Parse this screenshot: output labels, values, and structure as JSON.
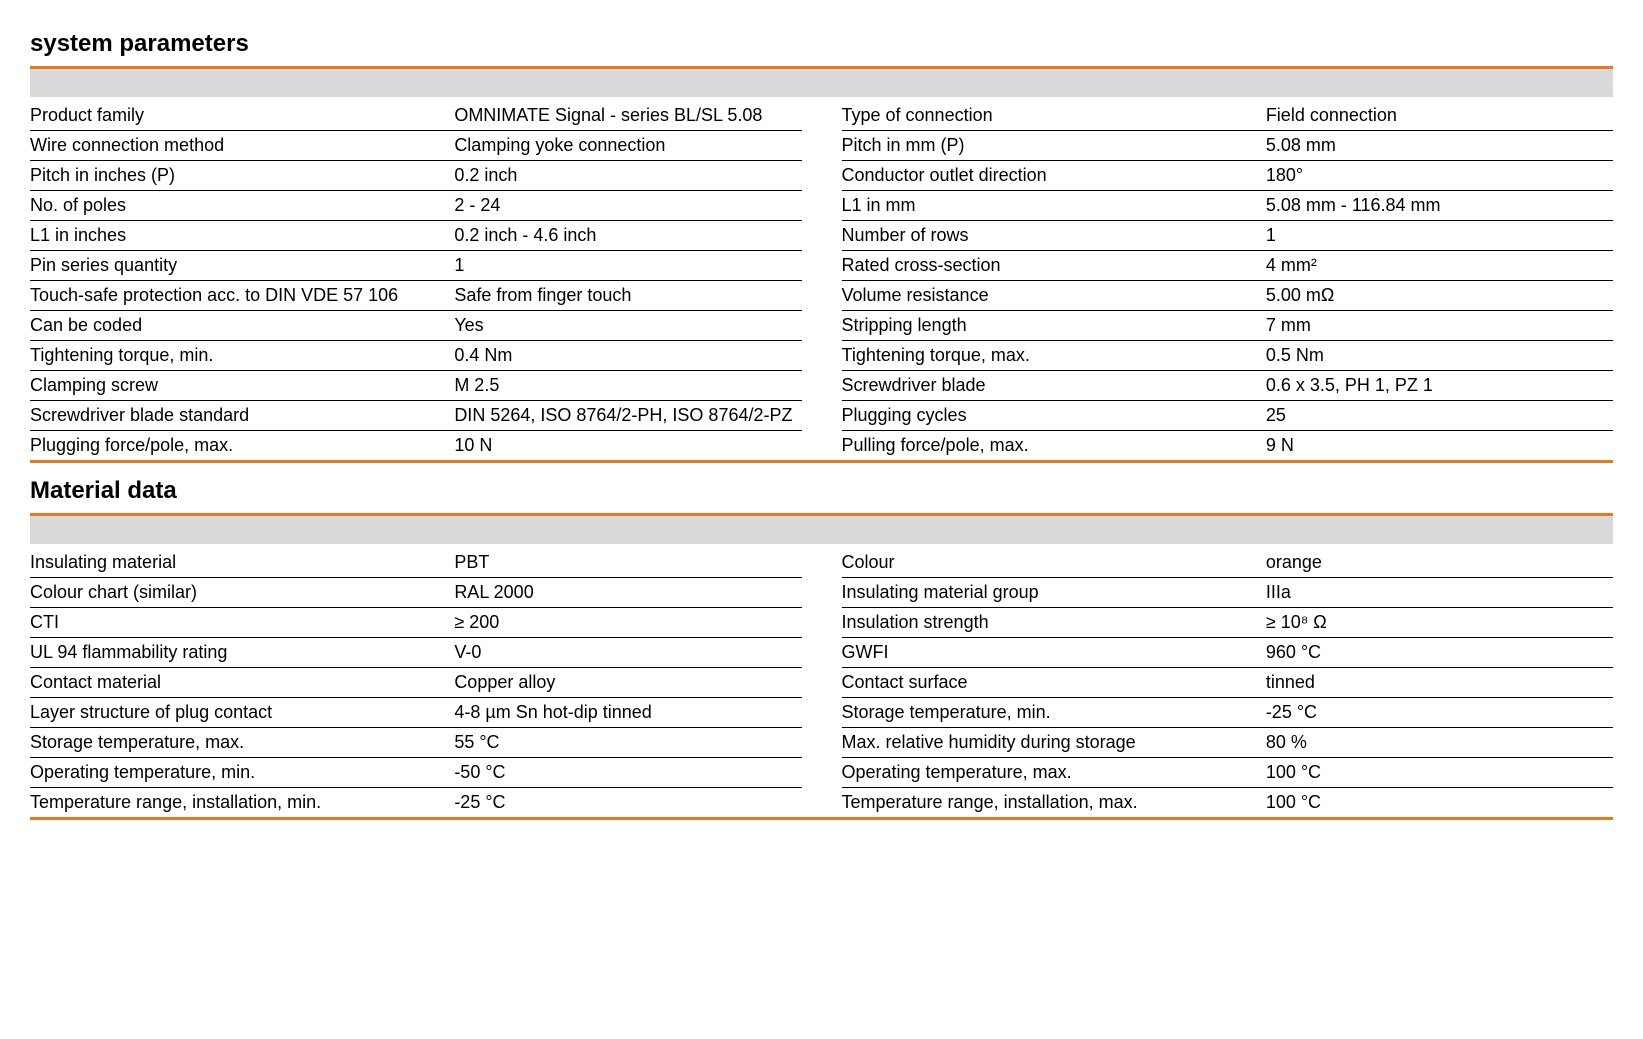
{
  "colors": {
    "accent": "#e87722",
    "header_bg": "#d9d9d9",
    "text": "#000000",
    "rule": "#000000",
    "background": "#ffffff"
  },
  "typography": {
    "body_fontsize": 18,
    "title_fontsize": 24,
    "font_family": "Arial"
  },
  "sections": [
    {
      "title": "system parameters",
      "left": [
        {
          "label": "Product family",
          "value": "OMNIMATE Signal - series BL/SL 5.08"
        },
        {
          "label": "Wire connection method",
          "value": "Clamping yoke connection"
        },
        {
          "label": "Pitch in inches (P)",
          "value": "0.2 inch"
        },
        {
          "label": "No. of poles",
          "value": "2 - 24"
        },
        {
          "label": "L1 in inches",
          "value": "0.2 inch - 4.6 inch"
        },
        {
          "label": "Pin series quantity",
          "value": "1"
        },
        {
          "label": "Touch-safe protection acc. to DIN VDE 57 106",
          "value": "Safe from finger touch"
        },
        {
          "label": "Can be coded",
          "value": "Yes"
        },
        {
          "label": "Tightening torque, min.",
          "value": "0.4 Nm"
        },
        {
          "label": "Clamping screw",
          "value": "M 2.5"
        },
        {
          "label": "Screwdriver blade standard",
          "value": "DIN 5264, ISO 8764/2-PH, ISO 8764/2-PZ"
        },
        {
          "label": "Plugging force/pole, max.",
          "value": "10 N",
          "last": true
        }
      ],
      "right": [
        {
          "label": "Type of connection",
          "value": "Field connection"
        },
        {
          "label": "Pitch in mm (P)",
          "value": "5.08 mm"
        },
        {
          "label": "Conductor outlet direction",
          "value": "180°"
        },
        {
          "label": "L1 in mm",
          "value": "5.08 mm - 116.84 mm"
        },
        {
          "label": "Number of rows",
          "value": "1"
        },
        {
          "label": "Rated cross-section",
          "value": "4 mm²"
        },
        {
          "label": "Volume resistance",
          "value": "5.00 mΩ"
        },
        {
          "label": "Stripping length",
          "value": "7 mm"
        },
        {
          "label": "Tightening torque, max.",
          "value": "0.5 Nm"
        },
        {
          "label": "Screwdriver blade",
          "value": "0.6 x 3.5, PH 1, PZ 1"
        },
        {
          "label": "Plugging cycles",
          "value": "25"
        },
        {
          "label": "Pulling force/pole, max.",
          "value": "9 N",
          "last": true
        }
      ]
    },
    {
      "title": "Material data",
      "left": [
        {
          "label": "Insulating material",
          "value": "PBT"
        },
        {
          "label": "Colour chart (similar)",
          "value": "RAL 2000"
        },
        {
          "label": "CTI",
          "value": "≥ 200"
        },
        {
          "label": "UL 94 flammability rating",
          "value": "V-0"
        },
        {
          "label": "Contact material",
          "value": "Copper alloy"
        },
        {
          "label": "Layer structure of plug contact",
          "value": "4-8 µm Sn hot-dip tinned"
        },
        {
          "label": "Storage temperature, max.",
          "value": "55 °C"
        },
        {
          "label": "Operating temperature, min.",
          "value": "-50 °C"
        },
        {
          "label": "Temperature range, installation, min.",
          "value": "-25 °C",
          "last": true
        }
      ],
      "right": [
        {
          "label": "Colour",
          "value": "orange"
        },
        {
          "label": "Insulating material group",
          "value": "IIIa"
        },
        {
          "label": "Insulation strength",
          "value": "≥ 10⁸ Ω"
        },
        {
          "label": "GWFI",
          "value": "960 °C"
        },
        {
          "label": "Contact surface",
          "value": "tinned"
        },
        {
          "label": "Storage temperature, min.",
          "value": "-25 °C"
        },
        {
          "label": "Max. relative humidity during storage",
          "value": "80 %"
        },
        {
          "label": "Operating temperature, max.",
          "value": "100 °C"
        },
        {
          "label": "Temperature range, installation, max.",
          "value": "100 °C",
          "last": true
        }
      ]
    }
  ]
}
